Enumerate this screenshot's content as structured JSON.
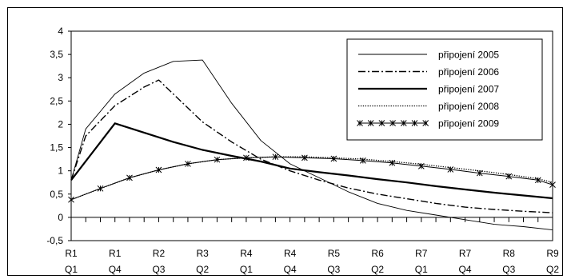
{
  "chart_data": {
    "type": "line",
    "title": "",
    "xlabel": "",
    "ylabel": "",
    "ylim": [
      -0.5,
      4
    ],
    "y_ticks": [
      "4",
      "3,5",
      "3",
      "2,5",
      "2",
      "1,5",
      "1",
      "0,5",
      "0",
      "-0,5"
    ],
    "x_labels": [
      {
        "year": "R1",
        "quarter": "Q1"
      },
      {
        "year": "R1",
        "quarter": "Q4"
      },
      {
        "year": "R2",
        "quarter": "Q3"
      },
      {
        "year": "R3",
        "quarter": "Q2"
      },
      {
        "year": "R4",
        "quarter": "Q1"
      },
      {
        "year": "R4",
        "quarter": "Q4"
      },
      {
        "year": "R5",
        "quarter": "Q3"
      },
      {
        "year": "R6",
        "quarter": "Q2"
      },
      {
        "year": "R7",
        "quarter": "Q1"
      },
      {
        "year": "R7",
        "quarter": "Q4"
      },
      {
        "year": "R8",
        "quarter": "Q3"
      },
      {
        "year": "R9",
        "quarter": "Q2"
      }
    ],
    "quarters_count": 34,
    "legend_position": "top-right",
    "series": [
      {
        "name": "připojení 2005",
        "style": "thin",
        "points": [
          [
            0,
            0.8
          ],
          [
            1,
            1.9
          ],
          [
            3,
            2.65
          ],
          [
            5,
            3.1
          ],
          [
            7,
            3.35
          ],
          [
            9,
            3.38
          ],
          [
            11,
            2.45
          ],
          [
            13,
            1.65
          ],
          [
            15,
            1.15
          ],
          [
            17,
            0.85
          ],
          [
            19,
            0.55
          ],
          [
            21,
            0.3
          ],
          [
            23,
            0.15
          ],
          [
            25,
            0.05
          ],
          [
            27,
            -0.05
          ],
          [
            29,
            -0.15
          ],
          [
            31,
            -0.2
          ],
          [
            33,
            -0.27
          ]
        ]
      },
      {
        "name": "připojení 2006",
        "style": "dashdot",
        "points": [
          [
            0,
            0.8
          ],
          [
            1,
            1.75
          ],
          [
            3,
            2.4
          ],
          [
            5,
            2.8
          ],
          [
            6,
            2.95
          ],
          [
            7,
            2.65
          ],
          [
            9,
            2.05
          ],
          [
            11,
            1.62
          ],
          [
            13,
            1.25
          ],
          [
            15,
            1.0
          ],
          [
            17,
            0.8
          ],
          [
            19,
            0.63
          ],
          [
            21,
            0.5
          ],
          [
            23,
            0.4
          ],
          [
            25,
            0.3
          ],
          [
            27,
            0.22
          ],
          [
            29,
            0.17
          ],
          [
            31,
            0.13
          ],
          [
            33,
            0.1
          ]
        ]
      },
      {
        "name": "připojení 2007",
        "style": "thick",
        "points": [
          [
            0,
            0.8
          ],
          [
            3,
            2.02
          ],
          [
            5,
            1.82
          ],
          [
            7,
            1.62
          ],
          [
            9,
            1.45
          ],
          [
            11,
            1.32
          ],
          [
            13,
            1.2
          ],
          [
            15,
            1.05
          ],
          [
            17,
            0.97
          ],
          [
            19,
            0.9
          ],
          [
            21,
            0.82
          ],
          [
            23,
            0.75
          ],
          [
            25,
            0.67
          ],
          [
            27,
            0.6
          ],
          [
            29,
            0.53
          ],
          [
            31,
            0.47
          ],
          [
            33,
            0.41
          ]
        ]
      },
      {
        "name": "připojení 2008",
        "style": "dotted",
        "points": [
          [
            0,
            0.38
          ],
          [
            2,
            0.62
          ],
          [
            4,
            0.85
          ],
          [
            6,
            1.02
          ],
          [
            8,
            1.15
          ],
          [
            10,
            1.24
          ],
          [
            12,
            1.28
          ],
          [
            14,
            1.3
          ],
          [
            16,
            1.3
          ],
          [
            18,
            1.28
          ],
          [
            20,
            1.25
          ],
          [
            22,
            1.2
          ],
          [
            24,
            1.14
          ],
          [
            26,
            1.07
          ],
          [
            28,
            1.0
          ],
          [
            30,
            0.92
          ],
          [
            32,
            0.83
          ],
          [
            33,
            0.75
          ]
        ]
      },
      {
        "name": "připojení 2009",
        "style": "star",
        "points": [
          [
            0,
            0.38
          ],
          [
            2,
            0.62
          ],
          [
            4,
            0.85
          ],
          [
            6,
            1.02
          ],
          [
            8,
            1.15
          ],
          [
            10,
            1.24
          ],
          [
            12,
            1.28
          ],
          [
            14,
            1.3
          ],
          [
            16,
            1.28
          ],
          [
            18,
            1.26
          ],
          [
            20,
            1.22
          ],
          [
            22,
            1.17
          ],
          [
            24,
            1.1
          ],
          [
            26,
            1.03
          ],
          [
            28,
            0.95
          ],
          [
            30,
            0.88
          ],
          [
            32,
            0.8
          ],
          [
            33,
            0.7
          ]
        ]
      }
    ]
  }
}
